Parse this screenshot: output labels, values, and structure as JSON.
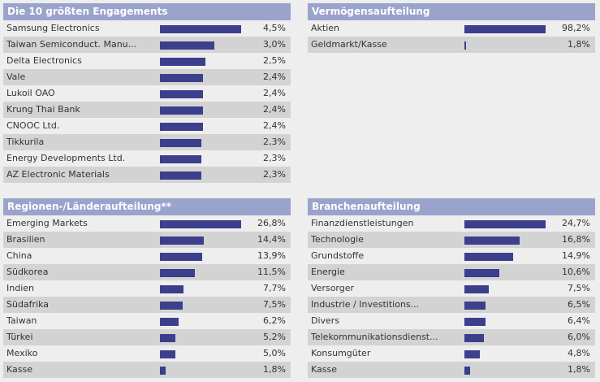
{
  "colors": {
    "header_bg": "#9aa3cc",
    "bar": "#3b3f8c",
    "row_alt": "#d3d3d3",
    "row": "#eeeeee"
  },
  "panels": {
    "top10": {
      "title": "Die 10 größten Engagements",
      "items": [
        {
          "label": "Samsung Electronics",
          "value": "4,5%",
          "pct": 4.5
        },
        {
          "label": "Taiwan Semiconduct. Manu...",
          "value": "3,0%",
          "pct": 3.0
        },
        {
          "label": "Delta Electronics",
          "value": "2,5%",
          "pct": 2.5
        },
        {
          "label": "Vale",
          "value": "2,4%",
          "pct": 2.4
        },
        {
          "label": "Lukoil OAO",
          "value": "2,4%",
          "pct": 2.4
        },
        {
          "label": "Krung Thai Bank",
          "value": "2,4%",
          "pct": 2.4
        },
        {
          "label": "CNOOC Ltd.",
          "value": "2,4%",
          "pct": 2.4
        },
        {
          "label": "Tikkurila",
          "value": "2,3%",
          "pct": 2.3
        },
        {
          "label": "Energy Developments Ltd.",
          "value": "2,3%",
          "pct": 2.3
        },
        {
          "label": "AZ Electronic Materials",
          "value": "2,3%",
          "pct": 2.3
        }
      ]
    },
    "assets": {
      "title": "Vermögensaufteilung",
      "items": [
        {
          "label": "Aktien",
          "value": "98,2%",
          "pct": 98.2
        },
        {
          "label": "Geldmarkt/Kasse",
          "value": "1,8%",
          "pct": 1.8
        }
      ]
    },
    "regions": {
      "title": "Regionen-/Länderaufteilung**",
      "items": [
        {
          "label": "Emerging Markets",
          "value": "26,8%",
          "pct": 26.8
        },
        {
          "label": "Brasilien",
          "value": "14,4%",
          "pct": 14.4
        },
        {
          "label": "China",
          "value": "13,9%",
          "pct": 13.9
        },
        {
          "label": "Südkorea",
          "value": "11,5%",
          "pct": 11.5
        },
        {
          "label": "Indien",
          "value": "7,7%",
          "pct": 7.7
        },
        {
          "label": "Südafrika",
          "value": "7,5%",
          "pct": 7.5
        },
        {
          "label": "Taiwan",
          "value": "6,2%",
          "pct": 6.2
        },
        {
          "label": "Türkei",
          "value": "5,2%",
          "pct": 5.2
        },
        {
          "label": "Mexiko",
          "value": "5,0%",
          "pct": 5.0
        },
        {
          "label": "Kasse",
          "value": "1,8%",
          "pct": 1.8
        }
      ]
    },
    "sectors": {
      "title": "Branchenaufteilung",
      "items": [
        {
          "label": "Finanzdienstleistungen",
          "value": "24,7%",
          "pct": 24.7
        },
        {
          "label": "Technologie",
          "value": "16,8%",
          "pct": 16.8
        },
        {
          "label": "Grundstoffe",
          "value": "14,9%",
          "pct": 14.9
        },
        {
          "label": "Energie",
          "value": "10,6%",
          "pct": 10.6
        },
        {
          "label": "Versorger",
          "value": "7,5%",
          "pct": 7.5
        },
        {
          "label": "Industrie / Investitions...",
          "value": "6,5%",
          "pct": 6.5
        },
        {
          "label": "Divers",
          "value": "6,4%",
          "pct": 6.4
        },
        {
          "label": "Telekommunikationsdienst...",
          "value": "6,0%",
          "pct": 6.0
        },
        {
          "label": "Konsumgüter",
          "value": "4,8%",
          "pct": 4.8
        },
        {
          "label": "Kasse",
          "value": "1,8%",
          "pct": 1.8
        }
      ]
    }
  }
}
